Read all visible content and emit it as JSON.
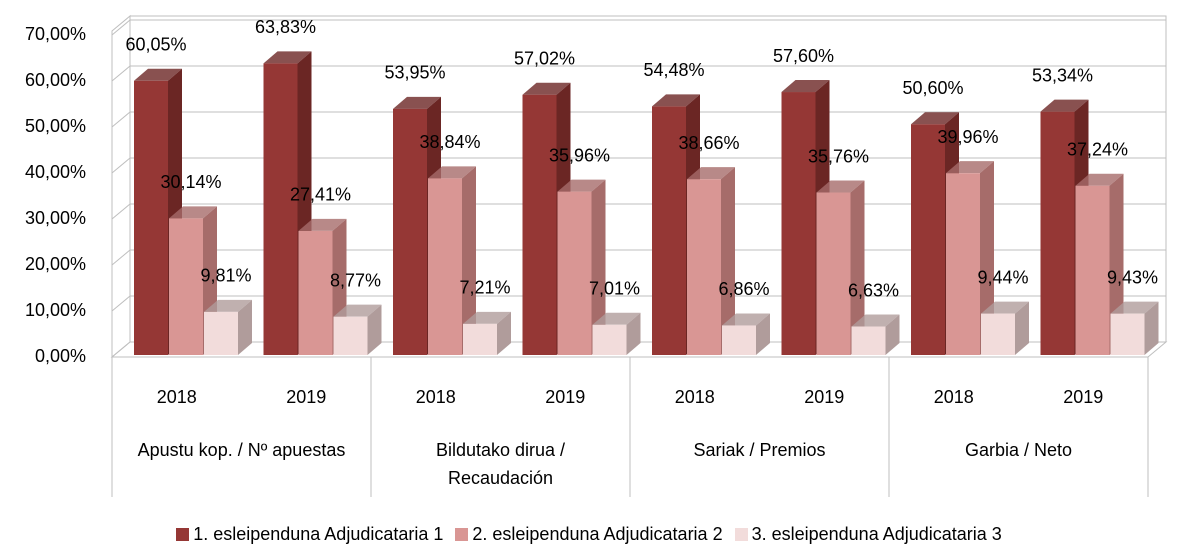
{
  "chart_data": {
    "type": "bar3d",
    "categories": [
      "2018",
      "2019",
      "2018",
      "2019",
      "2018",
      "2019",
      "2018",
      "2019"
    ],
    "category_groups": [
      "Apustu kop. / Nº apuestas",
      "Bildutako dirua / Recaudación",
      "Sariak / Premios",
      "Garbia / Neto"
    ],
    "ylim": [
      0,
      70
    ],
    "yticks": [
      {
        "value": 0,
        "label": "0,00%"
      },
      {
        "value": 10,
        "label": "10,00%"
      },
      {
        "value": 20,
        "label": "20,00%"
      },
      {
        "value": 30,
        "label": "30,00%"
      },
      {
        "value": 40,
        "label": "40,00%"
      },
      {
        "value": 50,
        "label": "50,00%"
      },
      {
        "value": 60,
        "label": "60,00%"
      },
      {
        "value": 70,
        "label": "70,00%"
      }
    ],
    "grid": true,
    "legend": "bottom",
    "series": [
      {
        "name": "1. esleipenduna Adjudicataria 1",
        "color": "#953735",
        "side": "#6b2624",
        "values": [
          60.05,
          63.83,
          53.95,
          57.02,
          54.48,
          57.6,
          50.6,
          53.34
        ],
        "value_labels": [
          "60,05%",
          "63,83%",
          "53,95%",
          "57,02%",
          "54,48%",
          "57,60%",
          "50,60%",
          "53,34%"
        ]
      },
      {
        "name": "2. esleipenduna Adjudicataria 2",
        "color": "#d99694",
        "side": "#a66c6a",
        "values": [
          30.14,
          27.41,
          38.84,
          35.96,
          38.66,
          35.76,
          39.96,
          37.24
        ],
        "value_labels": [
          "30,14%",
          "27,41%",
          "38,84%",
          "35,96%",
          "38,66%",
          "35,76%",
          "39,96%",
          "37,24%"
        ]
      },
      {
        "name": "3. esleipenduna Adjudicataria 3",
        "color": "#f2dcdb",
        "side": "#b09c9b",
        "values": [
          9.81,
          8.77,
          7.21,
          7.01,
          6.86,
          6.63,
          9.44,
          9.43
        ],
        "value_labels": [
          "9,81%",
          "8,77%",
          "7,21%",
          "7,01%",
          "6,86%",
          "6,63%",
          "9,44%",
          "9,43%"
        ]
      }
    ]
  }
}
